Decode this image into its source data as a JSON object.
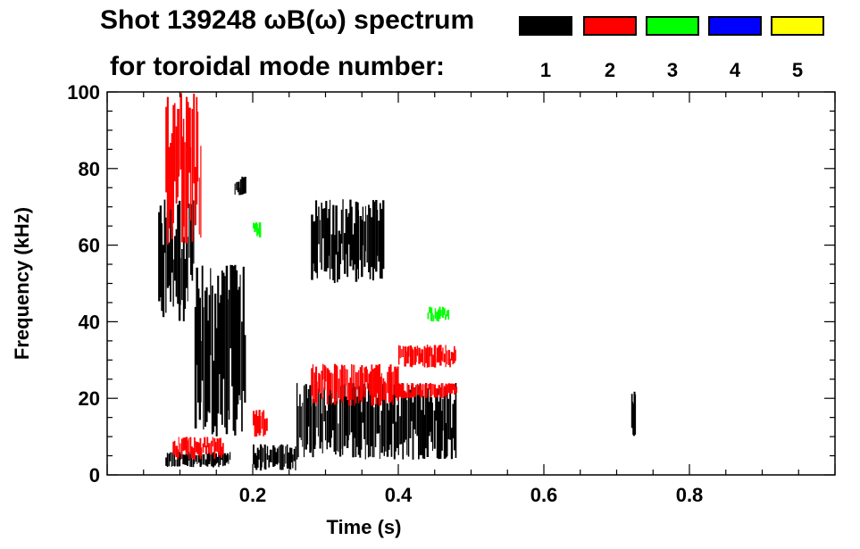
{
  "title": {
    "line1": "Shot 139248 ωB(ω) spectrum",
    "line2": "for toroidal mode number:"
  },
  "legend": [
    {
      "label": "1",
      "color": "#000000"
    },
    {
      "label": "2",
      "color": "#ff0000"
    },
    {
      "label": "3",
      "color": "#00ff00"
    },
    {
      "label": "4",
      "color": "#0000ff"
    },
    {
      "label": "5",
      "color": "#ffff00"
    }
  ],
  "chart_data": {
    "type": "heatmap",
    "xlabel": "Time (s)",
    "ylabel": "Frequency (kHz)",
    "xlim": [
      0.0,
      1.0
    ],
    "ylim": [
      0,
      100
    ],
    "xticks": [
      0.2,
      0.4,
      0.6,
      0.8
    ],
    "xtick_labels": [
      "0.2",
      "0.4",
      "0.6",
      "0.8"
    ],
    "yticks": [
      0,
      20,
      40,
      60,
      80,
      100
    ],
    "ytick_labels": [
      "0",
      "20",
      "40",
      "60",
      "80",
      "100"
    ],
    "grid": false,
    "legend_position": "top-right",
    "series": [
      {
        "label": "1",
        "color": "#000000",
        "features": [
          {
            "t": [
              0.07,
              0.12
            ],
            "f": [
              40,
              72
            ]
          },
          {
            "t": [
              0.12,
              0.19
            ],
            "f": [
              10,
              55
            ]
          },
          {
            "t": [
              0.08,
              0.17
            ],
            "f": [
              2,
              6
            ]
          },
          {
            "t": [
              0.2,
              0.26
            ],
            "f": [
              1,
              8
            ]
          },
          {
            "t": [
              0.26,
              0.48
            ],
            "f": [
              4,
              24
            ]
          },
          {
            "t": [
              0.28,
              0.38
            ],
            "f": [
              50,
              72
            ]
          },
          {
            "t": [
              0.175,
              0.19
            ],
            "f": [
              73,
              78
            ]
          },
          {
            "t": [
              0.72,
              0.725
            ],
            "f": [
              10,
              22
            ]
          }
        ]
      },
      {
        "label": "2",
        "color": "#ff0000",
        "features": [
          {
            "t": [
              0.08,
              0.13
            ],
            "f": [
              60,
              100
            ]
          },
          {
            "t": [
              0.09,
              0.16
            ],
            "f": [
              4,
              10
            ]
          },
          {
            "t": [
              0.28,
              0.4
            ],
            "f": [
              18,
              29
            ]
          },
          {
            "t": [
              0.4,
              0.48
            ],
            "f": [
              28,
              34
            ]
          },
          {
            "t": [
              0.4,
              0.48
            ],
            "f": [
              20,
              24
            ]
          },
          {
            "t": [
              0.2,
              0.22
            ],
            "f": [
              10,
              17
            ]
          }
        ]
      },
      {
        "label": "3",
        "color": "#00ff00",
        "features": [
          {
            "t": [
              0.2,
              0.21
            ],
            "f": [
              62,
              66
            ]
          },
          {
            "t": [
              0.44,
              0.47
            ],
            "f": [
              40,
              44
            ]
          }
        ]
      }
    ]
  }
}
